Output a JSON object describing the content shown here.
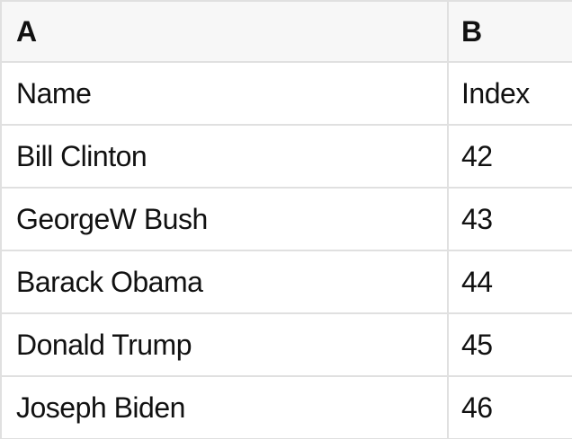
{
  "table": {
    "column_headers": [
      "A",
      "B"
    ],
    "rows": [
      [
        "Name",
        "Index"
      ],
      [
        "Bill Clinton",
        "42"
      ],
      [
        "GeorgeW Bush",
        "43"
      ],
      [
        "Barack Obama",
        "44"
      ],
      [
        "Donald Trump",
        "45"
      ],
      [
        "Joseph Biden",
        "46"
      ]
    ]
  },
  "colors": {
    "header_bg": "#f7f7f7",
    "border": "#e0e0e0",
    "text": "#111111",
    "body_bg": "#ffffff"
  }
}
